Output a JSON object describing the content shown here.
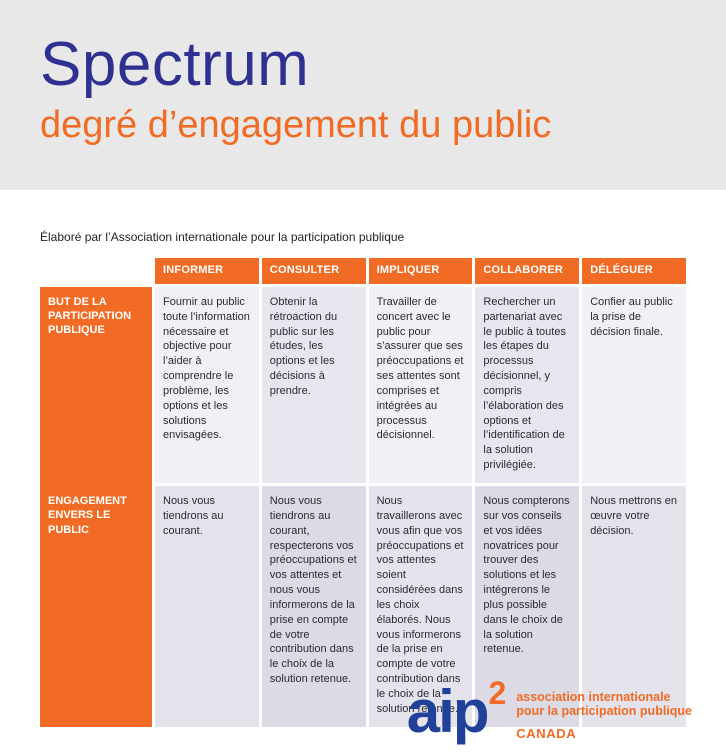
{
  "header": {
    "title": "Spectrum",
    "subtitle": "degré d’engagement du public"
  },
  "intro": "Élaboré par l’Association internationale pour la participation publique",
  "table": {
    "columns": [
      "INFORMER",
      "CONSULTER",
      "IMPLIQUER",
      "COLLABORER",
      "DÉLÉGUER"
    ],
    "rows": [
      {
        "label": "BUT DE LA PARTICIPATION PUBLIQUE",
        "cells": [
          "Fournir au public toute l’information nécessaire et objective pour l’aider à comprendre le problème, les options et les solutions envisagées.",
          "Obtenir la rétroaction du public sur les études, les options et les décisions à prendre.",
          "Travailler de concert avec le public pour s’assurer que ses préoccupations et ses attentes sont comprises et intégrées au processus décisionnel.",
          "Rechercher un partenariat avec le public à toutes les étapes du processus décisionnel, y compris l’élaboration des options et l’identification de la solution privilégiée.",
          "Confier au public la prise de décision finale."
        ]
      },
      {
        "label": "ENGAGEMENT ENVERS LE PUBLIC",
        "cells": [
          "Nous vous tiendrons au courant.",
          "Nous vous tiendrons au courant, respecterons vos préoccupations et vos attentes et nous vous informerons de la prise en compte de votre contribution dans le choix de la solution retenue.",
          "Nous travaillerons avec vous afin que vos préoccupations et vos attentes soient considérées dans les choix élaborés. Nous vous informerons de la prise en compte de votre contribution dans le choix de la solution retenue.",
          "Nous compterons sur vos conseils et vos idées novatrices pour trouver des solutions et les intégrerons le plus possible dans le choix de la solution retenue.",
          "Nous mettrons en œuvre votre décision."
        ]
      }
    ]
  },
  "logo": {
    "brand": "aip",
    "superscript": "2",
    "tagline_line1": "association internationale",
    "tagline_line2": "pour la participation publique",
    "country": "CANADA"
  },
  "colors": {
    "orange": "#f26b24",
    "blue": "#2e3192",
    "logo_blue": "#21409a",
    "hero_bg": "#e9e8e8"
  }
}
